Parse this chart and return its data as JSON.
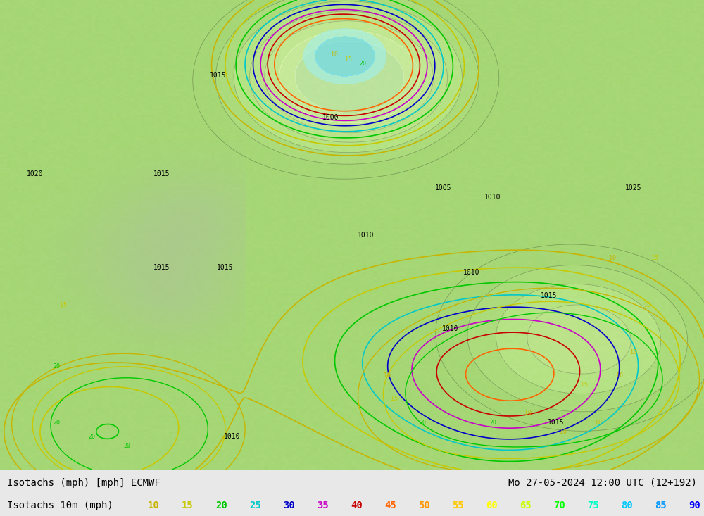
{
  "title_left": "Isotachs (mph) [mph] ECMWF",
  "title_right": "Mo 27-05-2024 12:00 UTC (12+192)",
  "subtitle_left": "Isotachs 10m (mph)",
  "legend_values": [
    10,
    15,
    20,
    25,
    30,
    35,
    40,
    45,
    50,
    55,
    60,
    65,
    70,
    75,
    80,
    85,
    90
  ],
  "legend_colors": [
    "#c8b400",
    "#c8c800",
    "#00c800",
    "#00c8c8",
    "#0000c8",
    "#c800c8",
    "#c80000",
    "#ff6400",
    "#ff9600",
    "#ffc800",
    "#ffff00",
    "#c8ff00",
    "#00ff00",
    "#00ffc8",
    "#00c8ff",
    "#0096ff",
    "#0000ff"
  ],
  "bg_color": "#f0f0f0",
  "map_bg_color": "#a8d878",
  "footer_bg": "#e8e8e8",
  "figsize": [
    10.0,
    7.33
  ],
  "dpi": 100
}
